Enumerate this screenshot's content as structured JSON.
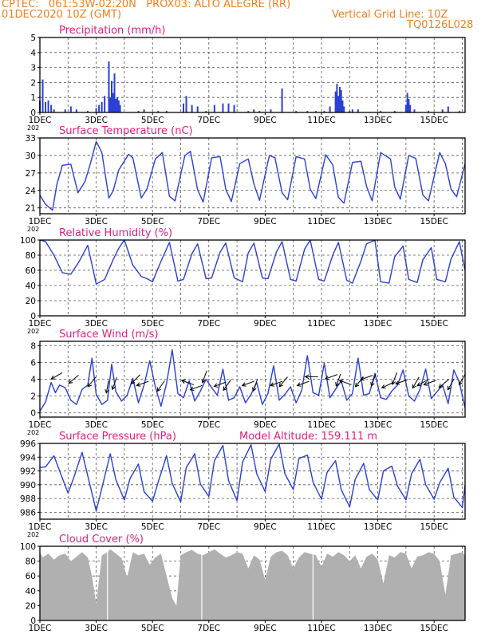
{
  "header": {
    "line1": "CPTEC:   061:53W-02:20N   PROX03: ALTO ALEGRE (RR)",
    "line2_left": "01DEC2020 10Z (GMT)",
    "line2_right": "Vertical Grid Line: 10Z",
    "line3_right": "TQ0126L028"
  },
  "colors": {
    "header": "#f08020",
    "title": "#e0207f",
    "series": "#2a3fd6",
    "bars": "#2a3fd6",
    "cloud": "#b0b0b0",
    "grid": "#555555"
  },
  "x_axis": {
    "ticks": [
      "1DEC",
      "3DEC",
      "5DEC",
      "7DEC",
      "9DEC",
      "11DEC",
      "13DEC",
      "15DEC"
    ],
    "tick_days": [
      1,
      3,
      5,
      7,
      9,
      11,
      13,
      15
    ],
    "year_stub": "202",
    "range_days": [
      1,
      16.1
    ]
  },
  "chart_data": [
    {
      "type": "bar",
      "title": "Precipitation (mm/h)",
      "ylim": [
        0,
        5
      ],
      "yticks": [
        "0",
        "1",
        "2",
        "3",
        "4",
        "5"
      ],
      "grid": true,
      "x": [
        1.0,
        1.1,
        1.2,
        1.3,
        1.4,
        1.5,
        1.9,
        2.1,
        2.3,
        2.7,
        3.0,
        3.1,
        3.2,
        3.3,
        3.45,
        3.5,
        3.55,
        3.6,
        3.65,
        3.7,
        3.75,
        3.8,
        3.85,
        4.5,
        4.7,
        5.2,
        5.5,
        6.1,
        6.2,
        6.4,
        6.6,
        6.9,
        7.2,
        7.5,
        7.7,
        7.9,
        8.4,
        8.6,
        8.8,
        9.2,
        9.6,
        10.1,
        10.5,
        10.8,
        11.1,
        11.3,
        11.5,
        11.55,
        11.6,
        11.65,
        11.7,
        11.75,
        11.8,
        12.0,
        12.1,
        12.3,
        13.1,
        13.6,
        14.0,
        14.05,
        14.1,
        14.15,
        14.3,
        14.8,
        15.3,
        15.5,
        15.9
      ],
      "y": [
        0.8,
        2.2,
        0.7,
        0.8,
        0.5,
        0.2,
        0.2,
        0.4,
        0.2,
        0.1,
        0.3,
        0.5,
        0.7,
        1.1,
        3.4,
        1.0,
        2.1,
        1.3,
        2.6,
        0.9,
        1.0,
        0.8,
        0.5,
        0.1,
        0.2,
        0.1,
        0.1,
        0.6,
        1.1,
        0.5,
        0.4,
        0.1,
        0.5,
        0.6,
        0.6,
        0.5,
        0.1,
        0.2,
        0.1,
        0.2,
        1.6,
        0.1,
        0.1,
        0.1,
        0.1,
        0.4,
        1.4,
        1.9,
        1.1,
        1.7,
        1.5,
        0.8,
        0.4,
        0.1,
        0.2,
        0.2,
        0.1,
        0.1,
        0.5,
        1.3,
        0.9,
        0.5,
        0.2,
        0.1,
        0.2,
        0.4,
        0.1
      ]
    },
    {
      "type": "line",
      "title": "Surface Temperature (nC)",
      "ylim": [
        20,
        33
      ],
      "yticks": [
        "21",
        "24",
        "27",
        "30",
        "33"
      ],
      "ytick_values": [
        21,
        24,
        27,
        30,
        33
      ],
      "grid": true,
      "x": [
        1.0,
        1.2,
        1.45,
        1.6,
        1.8,
        2.1,
        2.35,
        2.6,
        2.8,
        3.0,
        3.2,
        3.45,
        3.6,
        3.8,
        4.15,
        4.3,
        4.6,
        4.8,
        5.1,
        5.35,
        5.6,
        5.8,
        6.15,
        6.35,
        6.6,
        6.8,
        7.1,
        7.4,
        7.6,
        7.8,
        8.1,
        8.4,
        8.6,
        8.8,
        9.15,
        9.35,
        9.6,
        9.8,
        10.1,
        10.4,
        10.6,
        10.8,
        11.15,
        11.4,
        11.6,
        11.8,
        12.1,
        12.4,
        12.6,
        12.8,
        13.1,
        13.45,
        13.6,
        13.8,
        14.1,
        14.35,
        14.6,
        14.8,
        15.2,
        15.4,
        15.6,
        15.8,
        16.1
      ],
      "y": [
        23.2,
        21.6,
        20.6,
        25.0,
        28.3,
        28.5,
        23.6,
        25.5,
        28.7,
        32.4,
        30.5,
        22.7,
        23.9,
        27.5,
        30.2,
        29.6,
        22.7,
        24.2,
        29.4,
        30.5,
        23.0,
        22.2,
        30.0,
        30.7,
        24.1,
        22.0,
        29.6,
        29.8,
        24.2,
        22.1,
        28.6,
        29.4,
        25.1,
        22.3,
        30.0,
        29.6,
        23.6,
        22.4,
        29.8,
        29.4,
        24.2,
        22.6,
        30.1,
        28.4,
        22.8,
        21.8,
        28.8,
        29.0,
        24.7,
        22.2,
        30.5,
        29.4,
        24.6,
        22.5,
        30.0,
        29.5,
        23.2,
        22.2,
        30.5,
        28.6,
        24.2,
        22.9,
        28.6
      ]
    },
    {
      "type": "line",
      "title": "Relative Humidity (%)",
      "ylim": [
        0,
        100
      ],
      "yticks": [
        "0",
        "20",
        "40",
        "60",
        "80",
        "100"
      ],
      "ytick_values": [
        0,
        20,
        40,
        60,
        80,
        100
      ],
      "grid": true,
      "x": [
        1.0,
        1.2,
        1.5,
        1.8,
        2.1,
        2.4,
        2.7,
        3.0,
        3.3,
        3.6,
        3.8,
        4.0,
        4.3,
        4.6,
        4.8,
        5.0,
        5.3,
        5.6,
        5.9,
        6.1,
        6.4,
        6.6,
        6.9,
        7.1,
        7.4,
        7.6,
        7.9,
        8.2,
        8.4,
        8.6,
        8.9,
        9.1,
        9.4,
        9.6,
        9.9,
        10.1,
        10.4,
        10.6,
        10.9,
        11.1,
        11.4,
        11.6,
        11.9,
        12.1,
        12.4,
        12.6,
        12.9,
        13.1,
        13.4,
        13.6,
        13.9,
        14.1,
        14.4,
        14.6,
        14.9,
        15.1,
        15.4,
        15.6,
        15.9,
        16.1
      ],
      "y": [
        100,
        98,
        80,
        57,
        55,
        72,
        93,
        42,
        48,
        74,
        89,
        100,
        67,
        52,
        49,
        45,
        72,
        97,
        46,
        48,
        82,
        95,
        49,
        50,
        84,
        96,
        50,
        45,
        83,
        96,
        50,
        49,
        84,
        98,
        48,
        46,
        88,
        100,
        48,
        46,
        80,
        97,
        47,
        43,
        72,
        95,
        100,
        45,
        43,
        78,
        92,
        48,
        44,
        74,
        90,
        48,
        45,
        75,
        98,
        60
      ]
    },
    {
      "type": "line",
      "title": "Surface Wind (m/s)",
      "ylim": [
        -0.5,
        8.5
      ],
      "yticks": [
        "0",
        "2",
        "4",
        "6",
        "8"
      ],
      "ytick_values": [
        0,
        2,
        4,
        6,
        8
      ],
      "grid": true,
      "x": [
        1.0,
        1.2,
        1.4,
        1.55,
        1.7,
        1.9,
        2.1,
        2.3,
        2.5,
        2.7,
        2.85,
        3.0,
        3.2,
        3.4,
        3.55,
        3.7,
        3.9,
        4.1,
        4.3,
        4.5,
        4.7,
        4.9,
        5.1,
        5.3,
        5.5,
        5.7,
        5.9,
        6.1,
        6.3,
        6.5,
        6.7,
        6.9,
        7.1,
        7.3,
        7.5,
        7.7,
        7.9,
        8.1,
        8.3,
        8.5,
        8.7,
        8.9,
        9.1,
        9.3,
        9.5,
        9.7,
        9.9,
        10.1,
        10.3,
        10.5,
        10.7,
        10.9,
        11.1,
        11.3,
        11.5,
        11.7,
        11.9,
        12.1,
        12.3,
        12.5,
        12.7,
        12.9,
        13.1,
        13.3,
        13.5,
        13.7,
        13.9,
        14.1,
        14.3,
        14.5,
        14.7,
        14.9,
        15.1,
        15.3,
        15.5,
        15.7,
        15.9,
        16.1
      ],
      "y": [
        0.2,
        1.3,
        3.6,
        2.4,
        3.3,
        3.0,
        1.5,
        1.0,
        2.8,
        3.3,
        6.5,
        2.2,
        1.0,
        1.5,
        5.8,
        2.5,
        1.4,
        2.1,
        4.1,
        1.2,
        3.3,
        6.2,
        3.1,
        0.8,
        3.5,
        7.5,
        2.3,
        1.8,
        3.8,
        1.4,
        2.6,
        4.0,
        3.0,
        2.1,
        5.2,
        1.5,
        1.8,
        3.1,
        1.2,
        2.2,
        3.6,
        1.0,
        2.3,
        5.6,
        1.5,
        2.2,
        3.1,
        1.2,
        2.7,
        6.8,
        2.4,
        2.1,
        5.9,
        1.8,
        2.8,
        3.8,
        1.5,
        2.3,
        6.5,
        2.1,
        2.3,
        4.7,
        1.8,
        1.6,
        2.6,
        3.3,
        5.1,
        2.0,
        1.4,
        2.8,
        5.2,
        1.7,
        2.5,
        3.3,
        1.1,
        5.1,
        3.6,
        0.6
      ],
      "arrows_x": [
        1.6,
        2.2,
        2.85,
        3.4,
        3.65,
        4.4,
        4.65,
        5.3,
        6.25,
        6.55,
        6.85,
        7.4,
        7.65,
        8.4,
        8.65,
        9.4,
        9.65,
        10.35,
        10.65,
        11.35,
        11.6,
        11.85,
        12.35,
        12.6,
        12.85,
        13.35,
        13.6,
        13.85,
        14.35,
        14.6,
        14.85,
        15.35,
        15.6,
        16.0
      ],
      "arrows_y": [
        4.4,
        4.0,
        3.7,
        3.1,
        3.5,
        4.0,
        3.5,
        3.2,
        3.6,
        3.0,
        4.3,
        3.4,
        3.3,
        3.5,
        3.3,
        3.5,
        3.7,
        3.5,
        4.3,
        4.3,
        3.9,
        3.6,
        3.7,
        4.2,
        3.9,
        3.3,
        4.1,
        3.7,
        3.6,
        3.6,
        3.6,
        3.5,
        3.4,
        4.0
      ],
      "arrows_deg": [
        210,
        220,
        230,
        260,
        250,
        225,
        200,
        235,
        160,
        200,
        250,
        200,
        235,
        200,
        250,
        200,
        230,
        200,
        180,
        200,
        250,
        160,
        230,
        200,
        250,
        205,
        250,
        200,
        240,
        210,
        200,
        220,
        240,
        240
      ]
    },
    {
      "type": "line",
      "title": "Surface Pressure (hPa)",
      "annotation": "Model Altitude: 159.111  m",
      "ylim": [
        985,
        996
      ],
      "yticks": [
        "986",
        "988",
        "990",
        "992",
        "994",
        "996"
      ],
      "ytick_values": [
        986,
        988,
        990,
        992,
        994,
        996
      ],
      "grid": true,
      "x": [
        1.0,
        1.2,
        1.5,
        1.7,
        2.0,
        2.2,
        2.5,
        2.7,
        3.0,
        3.2,
        3.5,
        3.7,
        4.0,
        4.2,
        4.5,
        4.7,
        5.0,
        5.2,
        5.5,
        5.7,
        6.0,
        6.2,
        6.5,
        6.7,
        7.0,
        7.2,
        7.5,
        7.7,
        8.0,
        8.2,
        8.5,
        8.7,
        9.0,
        9.2,
        9.5,
        9.7,
        10.0,
        10.2,
        10.5,
        10.7,
        11.0,
        11.2,
        11.5,
        11.7,
        12.0,
        12.2,
        12.5,
        12.7,
        13.0,
        13.2,
        13.5,
        13.7,
        14.0,
        14.2,
        14.5,
        14.7,
        15.0,
        15.2,
        15.5,
        15.7,
        16.0,
        16.1
      ],
      "y": [
        992.5,
        992.6,
        994.2,
        992.0,
        988.8,
        991.0,
        994.7,
        991.3,
        986.2,
        989.5,
        994.5,
        990.7,
        987.8,
        990.9,
        993.0,
        989.0,
        987.6,
        990.4,
        994.2,
        990.2,
        987.5,
        992.5,
        994.5,
        990.1,
        988.3,
        993.5,
        995.7,
        990.6,
        987.7,
        993.3,
        995.8,
        991.6,
        989.0,
        993.7,
        995.9,
        991.6,
        989.3,
        993.8,
        994.3,
        990.4,
        987.9,
        991.8,
        993.5,
        989.3,
        986.8,
        990.8,
        993.1,
        989.3,
        987.8,
        992.0,
        992.7,
        989.8,
        987.8,
        991.6,
        993.7,
        990.0,
        987.9,
        990.3,
        992.4,
        988.2,
        986.7,
        990.0
      ]
    },
    {
      "type": "area",
      "title": "Cloud Cover (%)",
      "ylim": [
        0,
        100
      ],
      "yticks": [
        "0",
        "20",
        "40",
        "60",
        "80",
        "100"
      ],
      "ytick_values": [
        0,
        20,
        40,
        60,
        80,
        100
      ],
      "grid": true,
      "x": [
        1.0,
        1.1,
        1.3,
        1.5,
        1.7,
        1.9,
        2.1,
        2.3,
        2.5,
        2.7,
        2.85,
        3.0,
        3.2,
        3.4,
        3.5,
        3.7,
        3.9,
        4.1,
        4.3,
        4.5,
        4.7,
        4.9,
        5.1,
        5.3,
        5.5,
        5.7,
        5.85,
        6.0,
        6.2,
        6.4,
        6.6,
        6.8,
        7.0,
        7.2,
        7.4,
        7.6,
        7.8,
        8.0,
        8.2,
        8.4,
        8.6,
        8.8,
        9.0,
        9.2,
        9.4,
        9.6,
        9.8,
        10.0,
        10.2,
        10.4,
        10.6,
        10.8,
        11.0,
        11.2,
        11.4,
        11.6,
        11.8,
        12.0,
        12.2,
        12.4,
        12.6,
        12.8,
        13.0,
        13.2,
        13.4,
        13.6,
        13.8,
        14.0,
        14.2,
        14.4,
        14.6,
        14.8,
        15.0,
        15.2,
        15.4,
        15.6,
        15.8,
        16.0,
        16.1
      ],
      "y": [
        92,
        85,
        90,
        82,
        88,
        90,
        80,
        86,
        92,
        85,
        60,
        22,
        88,
        92,
        96,
        90,
        84,
        58,
        92,
        88,
        90,
        75,
        85,
        90,
        60,
        30,
        20,
        88,
        92,
        95,
        90,
        88,
        92,
        96,
        90,
        85,
        88,
        92,
        90,
        70,
        88,
        82,
        55,
        86,
        92,
        94,
        88,
        70,
        85,
        92,
        90,
        88,
        72,
        90,
        86,
        92,
        88,
        80,
        88,
        70,
        86,
        90,
        82,
        50,
        88,
        85,
        92,
        90,
        70,
        86,
        88,
        92,
        90,
        80,
        35,
        88,
        90,
        92,
        88
      ]
    }
  ]
}
